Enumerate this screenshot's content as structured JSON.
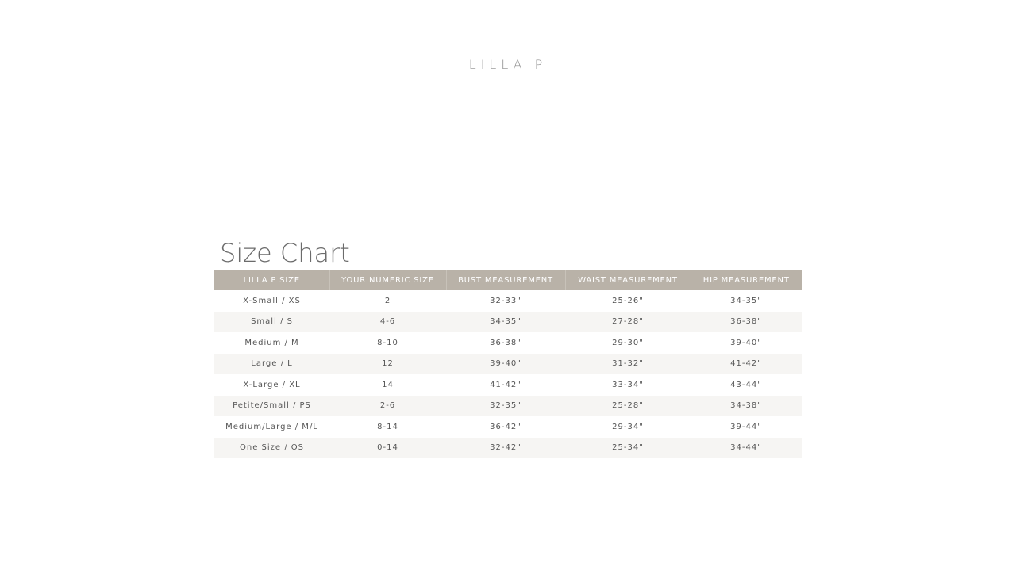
{
  "logo": {
    "left": "LILLA",
    "right": "P"
  },
  "title": "Size Chart",
  "table": {
    "headers": [
      "LILLA P SIZE",
      "YOUR NUMERIC SIZE",
      "BUST MEASUREMENT",
      "WAIST MEASUREMENT",
      "HIP MEASUREMENT"
    ],
    "rows": [
      [
        "X-Small / XS",
        "2",
        "32-33\"",
        "25-26\"",
        "34-35\""
      ],
      [
        "Small / S",
        "4-6",
        "34-35\"",
        "27-28\"",
        "36-38\""
      ],
      [
        "Medium / M",
        "8-10",
        "36-38\"",
        "29-30\"",
        "39-40\""
      ],
      [
        "Large / L",
        "12",
        "39-40\"",
        "31-32\"",
        "41-42\""
      ],
      [
        "X-Large / XL",
        "14",
        "41-42\"",
        "33-34\"",
        "43-44\""
      ],
      [
        "Petite/Small / PS",
        "2-6",
        "32-35\"",
        "25-28\"",
        "34-38\""
      ],
      [
        "Medium/Large / M/L",
        "8-14",
        "36-42\"",
        "29-34\"",
        "39-44\""
      ],
      [
        "One Size / OS",
        "0-14",
        "32-42\"",
        "25-34\"",
        "34-44\""
      ]
    ]
  },
  "colors": {
    "header_bg": "#b9b2a8",
    "alt_row_bg": "#f6f5f3",
    "text": "#555555"
  }
}
